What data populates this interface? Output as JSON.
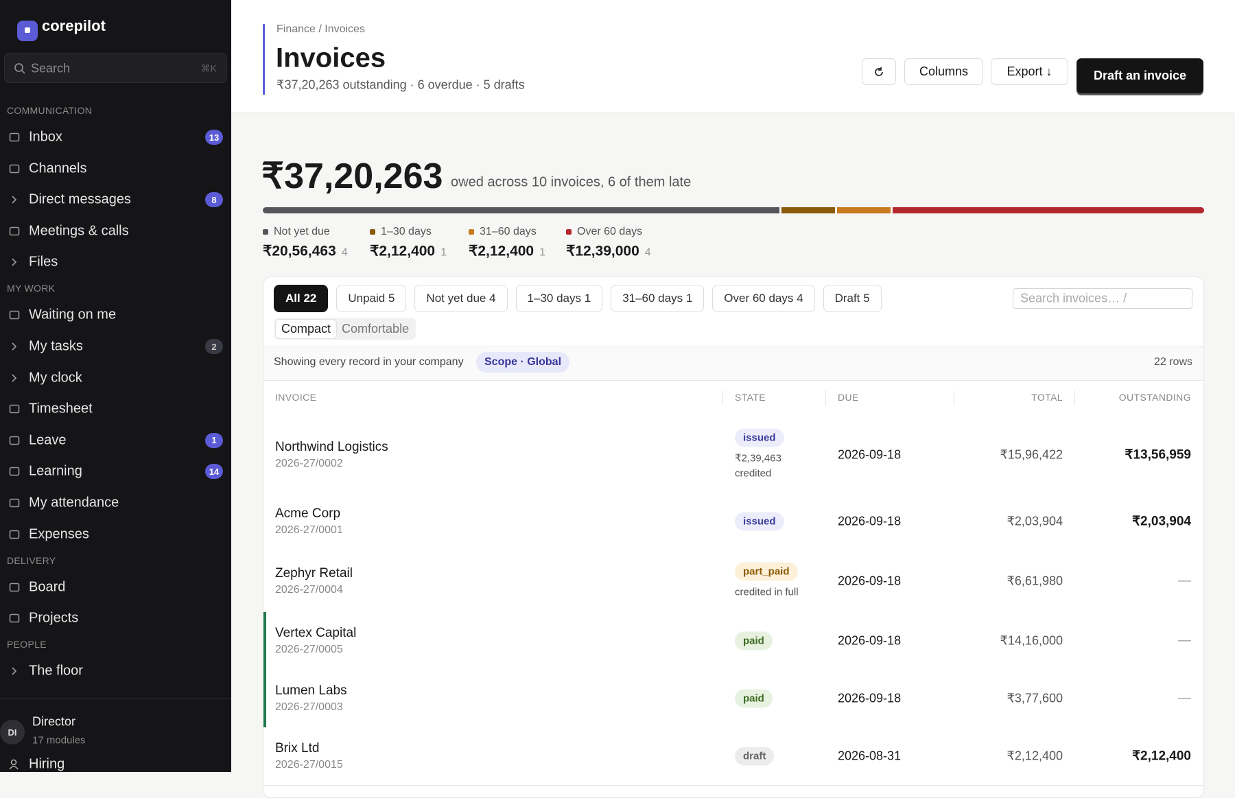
{
  "sidebar": {
    "brand": "corepilot",
    "search": "Search",
    "search_shortcut": "⌘K",
    "sections": [
      {
        "title": "COMMUNICATION",
        "items": [
          {
            "label": "Inbox",
            "badge": 13
          },
          {
            "label": "Channels"
          },
          {
            "label": "Direct messages",
            "badge": 8,
            "expandable": true
          },
          {
            "label": "Meetings & calls"
          },
          {
            "label": "Files",
            "expandable": true
          }
        ]
      },
      {
        "title": "MY WORK",
        "items": [
          {
            "label": "Waiting on me"
          },
          {
            "label": "My tasks",
            "badge": 2,
            "badge_muted": true,
            "expandable": true
          },
          {
            "label": "My clock",
            "expandable": true
          },
          {
            "label": "Timesheet"
          },
          {
            "label": "Leave",
            "badge": 1
          },
          {
            "label": "Learning",
            "badge": 14
          },
          {
            "label": "My attendance"
          },
          {
            "label": "Expenses"
          }
        ]
      },
      {
        "title": "DELIVERY",
        "items": [
          {
            "label": "Board"
          },
          {
            "label": "Projects"
          }
        ]
      },
      {
        "title": "PEOPLE",
        "items": [
          {
            "label": "The floor",
            "expandable": true
          }
        ]
      }
    ],
    "user": {
      "initials": "DI",
      "name": "Director",
      "meta": "17 modules"
    },
    "next_item": "Hiring"
  },
  "header": {
    "breadcrumb": "Finance / Invoices",
    "title": "Invoices",
    "subtitle": "₹37,20,263 outstanding · 6 overdue · 5 drafts",
    "buttons": [
      "Columns",
      "Export ↓"
    ],
    "primary": "Draft an invoice"
  },
  "summary": {
    "amount": "₹37,20,263",
    "caption": "owed across 10 invoices, 6 of them late",
    "buckets": [
      {
        "label": "Not yet due",
        "amount": {
          "value": 2056463,
          "label": "₹20,56,463"
        },
        "count": 4,
        "color": "#55555c"
      },
      {
        "label": "1–30 days",
        "amount": {
          "value": 212400,
          "label": "₹2,12,400"
        },
        "count": 1,
        "color": "#8a5a0b"
      },
      {
        "label": "31–60 days",
        "amount": {
          "value": 212400,
          "label": "₹2,12,400"
        },
        "count": 1,
        "color": "#c77a1e"
      },
      {
        "label": "Over 60 days",
        "amount": {
          "value": 1239000,
          "label": "₹12,39,000"
        },
        "count": 4,
        "color": "#b3282d"
      }
    ]
  },
  "filters": {
    "tabs": [
      "All 22",
      "Unpaid 5",
      "Not yet due 4",
      "1–30 days 1",
      "31–60 days 1",
      "Over 60 days 4",
      "Draft 5"
    ],
    "active": 0,
    "search": "Search invoices…  /",
    "density": [
      "Compact",
      "Comfortable"
    ],
    "density_active": 0
  },
  "info": {
    "text": "Showing every record in your company",
    "scope": "Scope · Global",
    "count": "22 rows"
  },
  "table": {
    "columns": [
      "INVOICE",
      "STATE",
      "DUE",
      "TOTAL",
      "OUTSTANDING"
    ],
    "rows": [
      {
        "name": "Northwind Logistics",
        "number": "2026-27/0002",
        "state": "issued",
        "note": "₹2,39,463 credited",
        "due": "2026-09-18",
        "total": "₹15,96,422",
        "outstanding": "₹13,56,959"
      },
      {
        "name": "Acme Corp",
        "number": "2026-27/0001",
        "state": "issued",
        "due": "2026-09-18",
        "total": "₹2,03,904",
        "outstanding": "₹2,03,904"
      },
      {
        "name": "Zephyr Retail",
        "number": "2026-27/0004",
        "state": "part_paid",
        "note": "credited in full",
        "due": "2026-09-18",
        "total": "₹6,61,980",
        "outstanding": "—"
      },
      {
        "name": "Vertex Capital",
        "number": "2026-27/0005",
        "state": "paid",
        "due": "2026-09-18",
        "total": "₹14,16,000",
        "outstanding": "—"
      },
      {
        "name": "Lumen Labs",
        "number": "2026-27/0003",
        "state": "paid",
        "due": "2026-09-18",
        "total": "₹3,77,600",
        "outstanding": "—"
      },
      {
        "name": "Brix Ltd",
        "number": "2026-27/0015",
        "state": "draft",
        "due": "2026-08-31",
        "total": "₹2,12,400",
        "outstanding": "₹2,12,400"
      }
    ]
  }
}
